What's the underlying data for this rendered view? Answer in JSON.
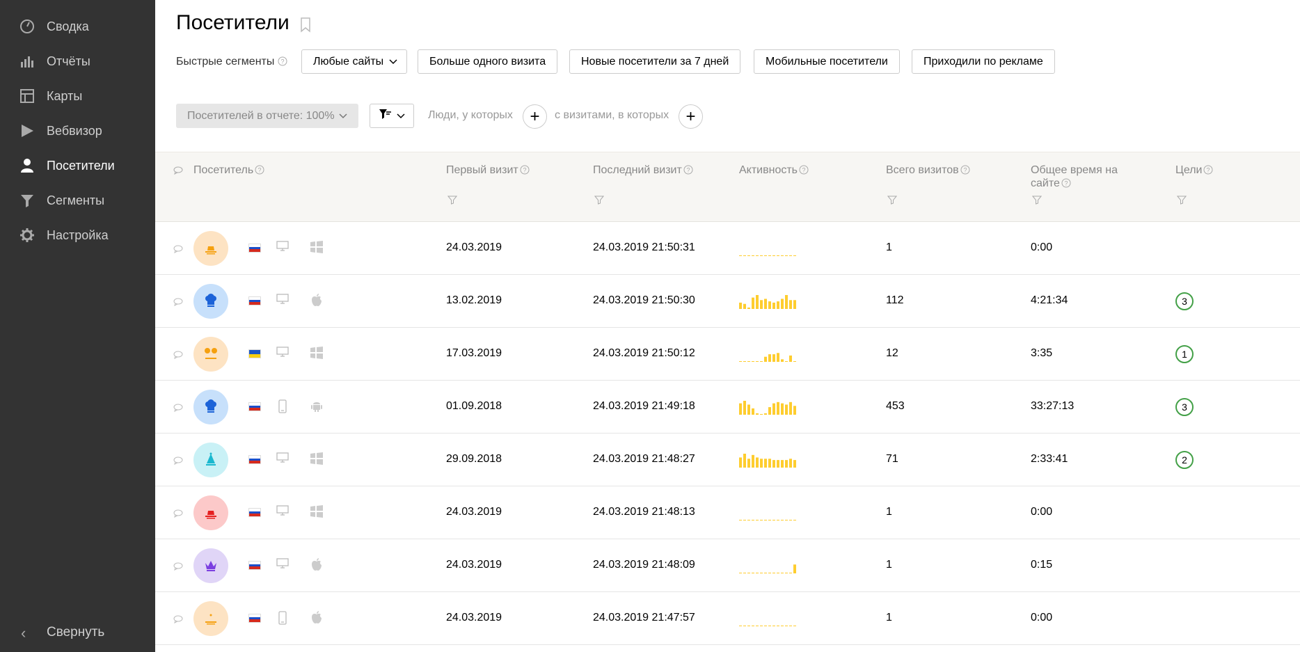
{
  "sidebar": {
    "items": [
      {
        "label": "Сводка",
        "icon": "gauge-icon"
      },
      {
        "label": "Отчёты",
        "icon": "bar-chart-icon"
      },
      {
        "label": "Карты",
        "icon": "map-layout-icon"
      },
      {
        "label": "Вебвизор",
        "icon": "play-icon"
      },
      {
        "label": "Посетители",
        "icon": "user-icon",
        "active": true
      },
      {
        "label": "Сегменты",
        "icon": "funnel-icon"
      },
      {
        "label": "Настройка",
        "icon": "gear-icon"
      }
    ],
    "collapse_label": "Свернуть"
  },
  "header": {
    "title": "Посетители",
    "quick_segments_label": "Быстрые сегменты",
    "segments": [
      "Любые сайты",
      "Больше одного визита",
      "Новые посетители за 7 дней",
      "Мобильные посетители",
      "Приходили по рекламе"
    ]
  },
  "filters": {
    "share_label": "Посетителей в отчете: 100%",
    "people_label": "Люди, у которых",
    "visits_label": "с визитами, в которых"
  },
  "table": {
    "columns": [
      "Посетитель",
      "Первый визит",
      "Последний визит",
      "Активность",
      "Всего визитов",
      "Общее время на сайте",
      "Цели"
    ],
    "rows": [
      {
        "avatar": "hat-icon",
        "avatar_bg": "#fde3c3",
        "avatar_fg": "#f5a00f",
        "flag": "ru",
        "device": "desktop-icon",
        "os": "windows-icon",
        "first": "24.03.2019",
        "last": "24.03.2019 21:50:31",
        "activity": [
          0,
          0,
          0,
          0,
          0,
          0,
          0,
          0,
          0,
          0,
          0,
          0,
          0,
          0
        ],
        "visits": "1",
        "time": "0:00",
        "goals": ""
      },
      {
        "avatar": "chef-hat-icon",
        "avatar_bg": "#c7e0fb",
        "avatar_fg": "#1c63d8",
        "flag": "ru",
        "device": "desktop-icon",
        "os": "apple-icon",
        "first": "13.02.2019",
        "last": "24.03.2019 21:50:30",
        "activity": [
          5,
          4,
          1,
          9,
          11,
          7,
          8,
          6,
          5,
          6,
          8,
          11,
          7,
          7
        ],
        "visits": "112",
        "time": "4:21:34",
        "goals": "3"
      },
      {
        "avatar": "mouse-ears-icon",
        "avatar_bg": "#fde3c3",
        "avatar_fg": "#f5a00f",
        "flag": "ua",
        "device": "desktop-icon",
        "os": "windows-icon",
        "first": "17.03.2019",
        "last": "24.03.2019 21:50:12",
        "activity": [
          0,
          0,
          0,
          0,
          0,
          0,
          4,
          6,
          6,
          7,
          2,
          0,
          5,
          0
        ],
        "visits": "12",
        "time": "3:35",
        "goals": "1"
      },
      {
        "avatar": "chef-hat-icon",
        "avatar_bg": "#c7e0fb",
        "avatar_fg": "#1c63d8",
        "flag": "ru",
        "device": "mobile-icon",
        "os": "android-icon",
        "first": "01.09.2018",
        "last": "24.03.2019 21:49:18",
        "activity": [
          9,
          11,
          8,
          5,
          1,
          0,
          1,
          6,
          9,
          10,
          9,
          8,
          10,
          7
        ],
        "visits": "453",
        "time": "33:27:13",
        "goals": "3"
      },
      {
        "avatar": "party-hat-icon",
        "avatar_bg": "#c9f1f6",
        "avatar_fg": "#1ab8cf",
        "flag": "ru",
        "device": "desktop-icon",
        "os": "windows-icon",
        "first": "29.09.2018",
        "last": "24.03.2019 21:48:27",
        "activity": [
          8,
          11,
          7,
          10,
          8,
          7,
          7,
          7,
          6,
          6,
          6,
          6,
          7,
          6
        ],
        "visits": "71",
        "time": "2:33:41",
        "goals": "2"
      },
      {
        "avatar": "hat-icon",
        "avatar_bg": "#fcc9c9",
        "avatar_fg": "#e52020",
        "flag": "ru",
        "device": "desktop-icon",
        "os": "windows-icon",
        "first": "24.03.2019",
        "last": "24.03.2019 21:48:13",
        "activity": [
          0,
          0,
          0,
          0,
          0,
          0,
          0,
          0,
          0,
          0,
          0,
          0,
          0,
          0
        ],
        "visits": "1",
        "time": "0:00",
        "goals": ""
      },
      {
        "avatar": "crown-icon",
        "avatar_bg": "#e0d5f7",
        "avatar_fg": "#7b3fe0",
        "flag": "ru",
        "device": "desktop-icon",
        "os": "apple-icon",
        "first": "24.03.2019",
        "last": "24.03.2019 21:48:09",
        "activity": [
          0,
          0,
          0,
          0,
          0,
          0,
          0,
          0,
          0,
          0,
          0,
          0,
          0,
          7
        ],
        "visits": "1",
        "time": "0:15",
        "goals": ""
      },
      {
        "avatar": "cake-icon",
        "avatar_bg": "#fde3c3",
        "avatar_fg": "#f5a00f",
        "flag": "ru",
        "device": "mobile-icon",
        "os": "apple-icon",
        "first": "24.03.2019",
        "last": "24.03.2019 21:47:57",
        "activity": [
          0,
          0,
          0,
          0,
          0,
          0,
          0,
          0,
          0,
          0,
          0,
          0,
          0,
          0
        ],
        "visits": "1",
        "time": "0:00",
        "goals": ""
      }
    ]
  },
  "colors": {
    "sidebar_bg": "#333333",
    "activity_bar": "#fecd2f",
    "goal_ring": "#43a047",
    "header_bg": "#f7f6f3"
  }
}
